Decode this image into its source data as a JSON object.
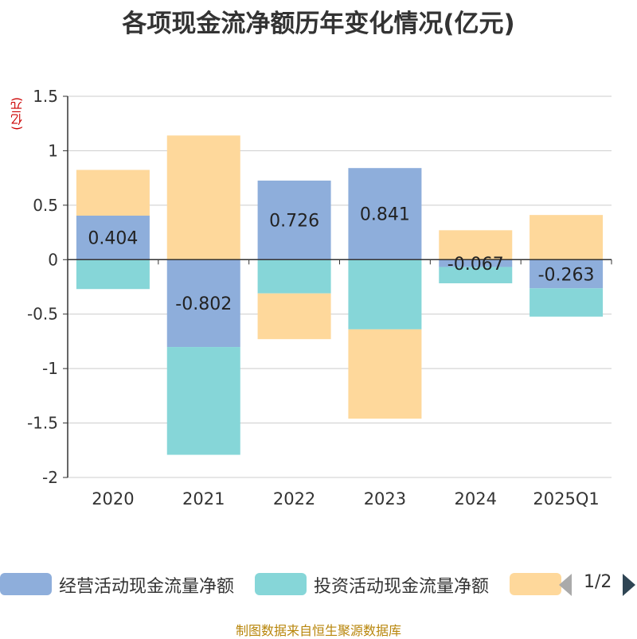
{
  "chart_data": {
    "type": "bar",
    "stacked": true,
    "title": "各项现金流净额历年变化情况(亿元)",
    "ylabel": "(亿元)",
    "ylim": [
      -2,
      1.5
    ],
    "yticks": [
      1.5,
      1,
      0.5,
      0,
      -0.5,
      -1,
      -1.5,
      -2
    ],
    "ytick_labels": [
      "1.5",
      "1",
      "0.5",
      "0",
      "-0.5",
      "-1",
      "-1.5",
      "-2"
    ],
    "categories": [
      "2020",
      "2021",
      "2022",
      "2023",
      "2024",
      "2025Q1"
    ],
    "series": [
      {
        "name": "经营活动现金流量净额",
        "color": "#8eaedb",
        "values": [
          0.404,
          -0.802,
          0.726,
          0.841,
          -0.067,
          -0.263
        ],
        "labels": [
          "0.404",
          "-0.802",
          "0.726",
          "0.841",
          "-0.067",
          "-0.263"
        ]
      },
      {
        "name": "投资活动现金流量净额",
        "color": "#86d6d8",
        "values": [
          -0.27,
          -0.99,
          -0.31,
          -0.64,
          -0.15,
          -0.26
        ]
      },
      {
        "name": "",
        "color": "#fed89b",
        "values": [
          0.42,
          1.14,
          -0.42,
          -0.82,
          0.27,
          0.41
        ]
      }
    ]
  },
  "legend": {
    "page": "1/2"
  },
  "source": "制图数据来自恒生聚源数据库"
}
